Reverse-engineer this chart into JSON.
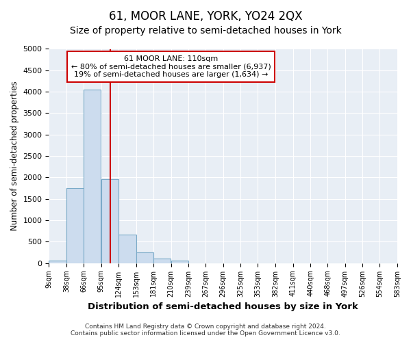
{
  "title": "61, MOOR LANE, YORK, YO24 2QX",
  "subtitle": "Size of property relative to semi-detached houses in York",
  "xlabel": "Distribution of semi-detached houses by size in York",
  "ylabel": "Number of semi-detached properties",
  "bins": [
    9,
    38,
    66,
    95,
    124,
    153,
    181,
    210,
    239,
    267,
    296,
    325,
    353,
    382,
    411,
    440,
    468,
    497,
    526,
    554,
    583
  ],
  "counts": [
    50,
    1750,
    4050,
    1950,
    660,
    250,
    100,
    60,
    0,
    0,
    0,
    0,
    0,
    0,
    0,
    0,
    0,
    0,
    0,
    0
  ],
  "bar_color": "#ccdcee",
  "bar_edge_color": "#7aaac8",
  "property_size": 110,
  "property_label": "61 MOOR LANE: 110sqm",
  "annotation_line1": "← 80% of semi-detached houses are smaller (6,937)",
  "annotation_line2": "19% of semi-detached houses are larger (1,634) →",
  "vline_color": "#cc0000",
  "box_edge_color": "#cc0000",
  "ylim": [
    0,
    5000
  ],
  "yticks": [
    0,
    500,
    1000,
    1500,
    2000,
    2500,
    3000,
    3500,
    4000,
    4500,
    5000
  ],
  "tick_labels": [
    "9sqm",
    "38sqm",
    "66sqm",
    "95sqm",
    "124sqm",
    "153sqm",
    "181sqm",
    "210sqm",
    "239sqm",
    "267sqm",
    "296sqm",
    "325sqm",
    "353sqm",
    "382sqm",
    "411sqm",
    "440sqm",
    "468sqm",
    "497sqm",
    "526sqm",
    "554sqm",
    "583sqm"
  ],
  "footer_line1": "Contains HM Land Registry data © Crown copyright and database right 2024.",
  "footer_line2": "Contains public sector information licensed under the Open Government Licence v3.0.",
  "background_color": "#ffffff",
  "plot_bg_color": "#e8eef5",
  "grid_color": "#ffffff",
  "title_fontsize": 12,
  "subtitle_fontsize": 10
}
